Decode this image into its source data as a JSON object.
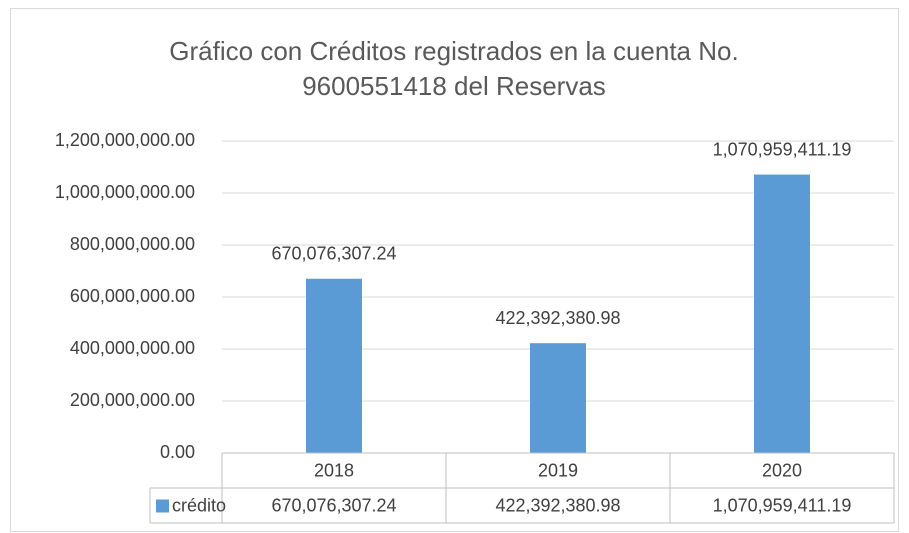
{
  "chart_data": {
    "type": "bar",
    "title": "Gráfico con Créditos registrados en la cuenta No. 9600551418 del Reservas",
    "categories": [
      "2018",
      "2019",
      "2020"
    ],
    "series": [
      {
        "name": "crédito",
        "color": "#5b9bd5",
        "values": [
          670076307.24,
          422392380.98,
          1070959411.19
        ],
        "value_labels": [
          "670,076,307.24",
          "422,392,380.98",
          "1,070,959,411.19"
        ]
      }
    ],
    "ylim": [
      0,
      1200000000
    ],
    "yticks": [
      {
        "value": 0,
        "label": "0.00"
      },
      {
        "value": 200000000,
        "label": "200,000,000.00"
      },
      {
        "value": 400000000,
        "label": "400,000,000.00"
      },
      {
        "value": 600000000,
        "label": "600,000,000.00"
      },
      {
        "value": 800000000,
        "label": "800,000,000.00"
      },
      {
        "value": 1000000000,
        "label": "1,000,000,000.00"
      },
      {
        "value": 1200000000,
        "label": "1,200,000,000.00"
      }
    ],
    "grid": true,
    "data_table": true
  }
}
